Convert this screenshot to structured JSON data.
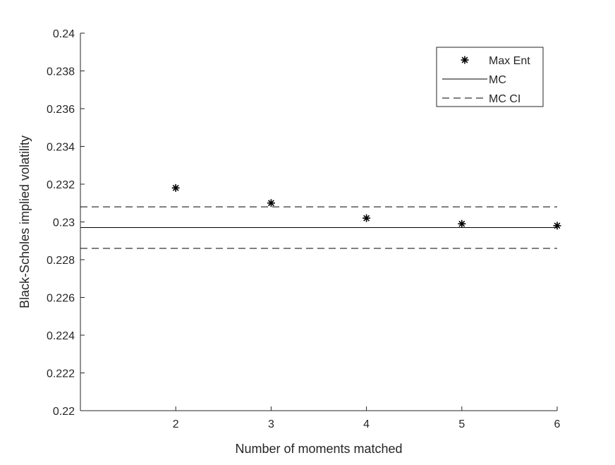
{
  "chart_data": {
    "type": "scatter",
    "title": "",
    "xlabel": "Number of moments matched",
    "ylabel": "Black-Scholes implied volatility",
    "xlim": [
      1,
      6
    ],
    "ylim": [
      0.22,
      0.24
    ],
    "x_ticks": [
      2,
      3,
      4,
      5,
      6
    ],
    "y_ticks": [
      0.22,
      0.222,
      0.224,
      0.226,
      0.228,
      0.23,
      0.232,
      0.234,
      0.236,
      0.238,
      0.24
    ],
    "x_tick_labels": [
      "2",
      "3",
      "4",
      "5",
      "6"
    ],
    "y_tick_labels": [
      "0.22",
      "0.222",
      "0.224",
      "0.226",
      "0.228",
      "0.23",
      "0.232",
      "0.234",
      "0.236",
      "0.238",
      "0.24"
    ],
    "grid": false,
    "legend_position": "top-right",
    "series": [
      {
        "name": "Max Ent",
        "style": "asterisk-markers",
        "color": "#000000",
        "x": [
          2,
          3,
          4,
          5,
          6
        ],
        "y": [
          0.2318,
          0.231,
          0.2302,
          0.2299,
          0.2298
        ]
      },
      {
        "name": "MC",
        "style": "solid-line",
        "color": "#000000",
        "y": 0.2297
      },
      {
        "name": "MC CI",
        "style": "dashed-line",
        "color": "#000000",
        "y_upper": 0.2308,
        "y_lower": 0.2286
      }
    ]
  }
}
